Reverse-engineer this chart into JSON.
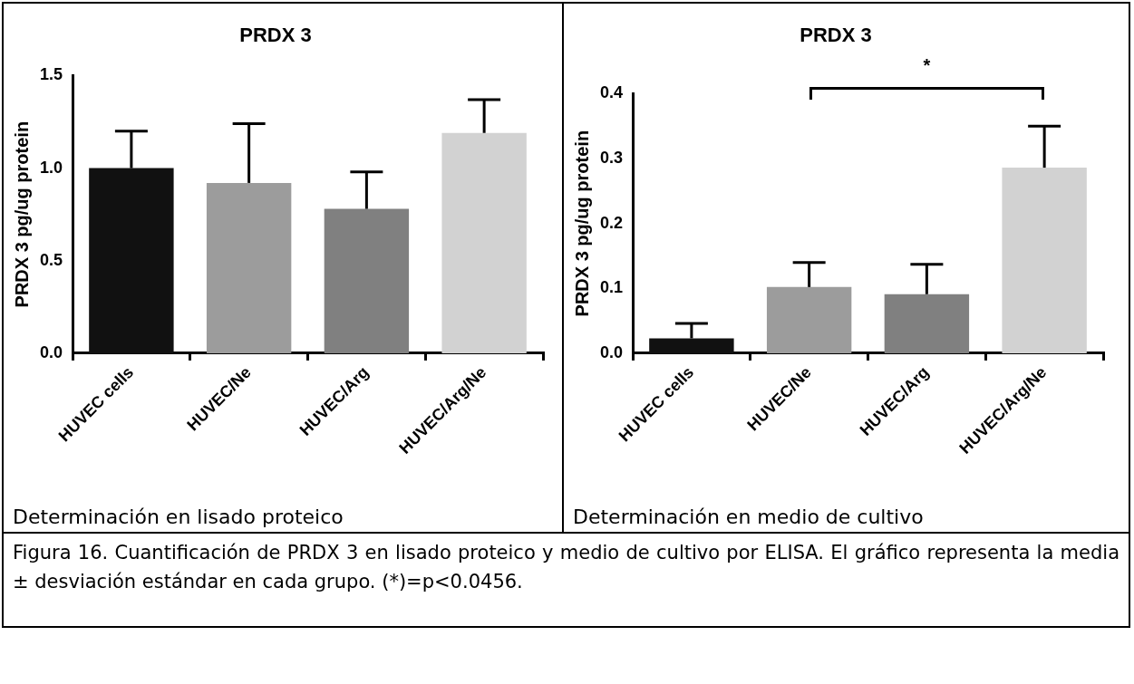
{
  "chart_data": [
    {
      "type": "bar",
      "title": "PRDX 3",
      "ylabel": "PRDX 3 pg/ug protein",
      "categories": [
        "HUVEC cells",
        "HUVEC/Ne",
        "HUVEC/Arg",
        "HUVEC/Arg/Ne"
      ],
      "values": [
        1.0,
        0.92,
        0.78,
        1.19
      ],
      "errors": [
        [
          1.0,
          1.2
        ],
        [
          0.92,
          1.24
        ],
        [
          0.78,
          0.98
        ],
        [
          1.19,
          1.37
        ]
      ],
      "colors": [
        "#111111",
        "#9c9c9c",
        "#808080",
        "#d2d2d2"
      ],
      "ylim": [
        0,
        1.5
      ],
      "yticks": [
        {
          "value": 0,
          "label": "0.0"
        },
        {
          "value": 0.5,
          "label": "0.5"
        },
        {
          "value": 1,
          "label": "1.0"
        },
        {
          "value": 1.5,
          "label": "1.5"
        }
      ],
      "annotations": [
        "Determinación en lisado proteico"
      ]
    },
    {
      "type": "bar",
      "title": "PRDX 3",
      "ylabel": "PRDX 3 pg/ug protein",
      "categories": [
        "HUVEC cells",
        "HUVEC/Ne",
        "HUVEC/Arg",
        "HUVEC/Arg/Ne"
      ],
      "values": [
        0.023,
        0.102,
        0.091,
        0.286
      ],
      "errors": [
        [
          0.023,
          0.046
        ],
        [
          0.102,
          0.14
        ],
        [
          0.091,
          0.137
        ],
        [
          0.286,
          0.35
        ]
      ],
      "colors": [
        "#111111",
        "#9c9c9c",
        "#808080",
        "#d2d2d2"
      ],
      "ylim": [
        0,
        0.4
      ],
      "yticks": [
        {
          "value": 0,
          "label": "0.0"
        },
        {
          "value": 0.1,
          "label": "0.1"
        },
        {
          "value": 0.2,
          "label": "0.2"
        },
        {
          "value": 0.3,
          "label": "0.3"
        },
        {
          "value": 0.4,
          "label": "0.4"
        }
      ],
      "annotations": [
        "*",
        "Determinación en medio de cultivo",
        "Figura 16. Cuantificación de PRDX 3 en lisado proteico y medio de cultivo por ELISA. El gráfico representa la media ± desviación estándar en cada grupo. (*)=p<0.0456."
      ]
    }
  ]
}
